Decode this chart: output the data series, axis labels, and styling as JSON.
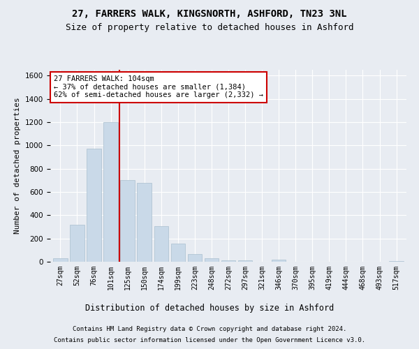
{
  "title_line1": "27, FARRERS WALK, KINGSNORTH, ASHFORD, TN23 3NL",
  "title_line2": "Size of property relative to detached houses in Ashford",
  "xlabel": "Distribution of detached houses by size in Ashford",
  "ylabel": "Number of detached properties",
  "categories": [
    "27sqm",
    "52sqm",
    "76sqm",
    "101sqm",
    "125sqm",
    "150sqm",
    "174sqm",
    "199sqm",
    "223sqm",
    "248sqm",
    "272sqm",
    "297sqm",
    "321sqm",
    "346sqm",
    "370sqm",
    "395sqm",
    "419sqm",
    "444sqm",
    "468sqm",
    "493sqm",
    "517sqm"
  ],
  "values": [
    30,
    320,
    970,
    1200,
    700,
    680,
    305,
    155,
    65,
    30,
    15,
    10,
    2,
    20,
    2,
    2,
    0,
    2,
    0,
    0,
    5
  ],
  "bar_color": "#c9d9e8",
  "bar_edge_color": "#aabfcf",
  "red_line_x": 3.5,
  "annotation_line1": "27 FARRERS WALK: 104sqm",
  "annotation_line2": "← 37% of detached houses are smaller (1,384)",
  "annotation_line3": "62% of semi-detached houses are larger (2,332) →",
  "annotation_box_color": "#ffffff",
  "annotation_box_edge": "#cc0000",
  "ylim": [
    0,
    1650
  ],
  "footer_line1": "Contains HM Land Registry data © Crown copyright and database right 2024.",
  "footer_line2": "Contains public sector information licensed under the Open Government Licence v3.0.",
  "background_color": "#e8ecf2",
  "plot_bg_color": "#e8ecf2",
  "grid_color": "#ffffff",
  "title1_fontsize": 10,
  "title2_fontsize": 9,
  "tick_fontsize": 7,
  "ylabel_fontsize": 8,
  "xlabel_fontsize": 8.5,
  "footer_fontsize": 6.5
}
